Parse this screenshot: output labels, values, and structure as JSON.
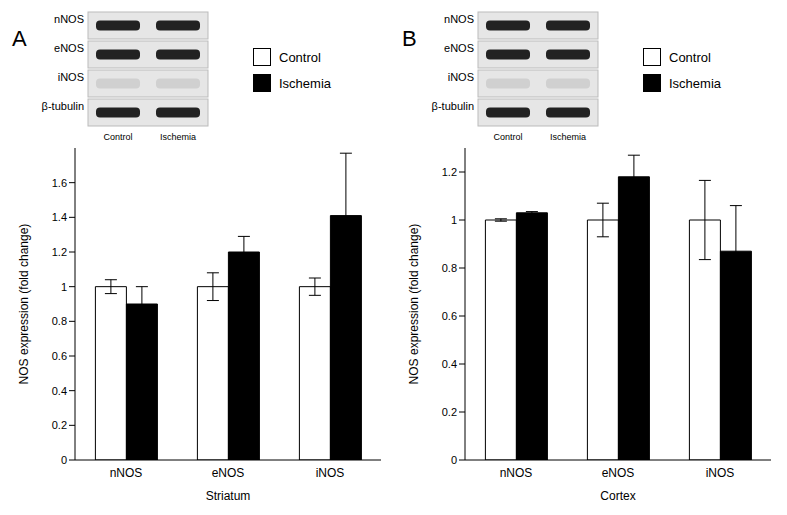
{
  "chart_data": [
    {
      "type": "bar",
      "panel_label": "A",
      "x_label": "Striatum",
      "y_label": "NOS expression (fold change)",
      "blot_rows": [
        "nNOS",
        "eNOS",
        "iNOS",
        "β-tubulin"
      ],
      "blot_lanes": [
        "Control",
        "Ischemia"
      ],
      "categories": [
        "nNOS",
        "eNOS",
        "iNOS"
      ],
      "series": [
        {
          "name": "Control",
          "color": "#ffffff",
          "values": [
            1,
            1,
            1
          ],
          "errors": [
            0.04,
            0.08,
            0.05
          ]
        },
        {
          "name": "Ischemia",
          "color": "#000000",
          "values": [
            0.9,
            1.2,
            1.41
          ],
          "errors": [
            0.1,
            0.09,
            0.36
          ]
        }
      ],
      "ylim": [
        0,
        1.8
      ],
      "yticks": [
        0,
        0.2,
        0.4,
        0.6,
        0.8,
        1,
        1.2,
        1.4,
        1.6
      ],
      "legend": "top-right"
    },
    {
      "type": "bar",
      "panel_label": "B",
      "x_label": "Cortex",
      "y_label": "NOS expression (fold change)",
      "blot_rows": [
        "nNOS",
        "eNOS",
        "iNOS",
        "β-tubulin"
      ],
      "blot_lanes": [
        "Control",
        "Ischemia"
      ],
      "categories": [
        "nNOS",
        "eNOS",
        "iNOS"
      ],
      "series": [
        {
          "name": "Control",
          "color": "#ffffff",
          "values": [
            1,
            1,
            1
          ],
          "errors": [
            0.005,
            0.07,
            0.165
          ]
        },
        {
          "name": "Ischemia",
          "color": "#000000",
          "values": [
            1.03,
            1.18,
            0.87
          ],
          "errors": [
            0.005,
            0.09,
            0.19
          ]
        }
      ],
      "ylim": [
        0,
        1.3
      ],
      "yticks": [
        0,
        0.2,
        0.4,
        0.6,
        0.8,
        1,
        1.2
      ],
      "legend": "top-right"
    }
  ]
}
